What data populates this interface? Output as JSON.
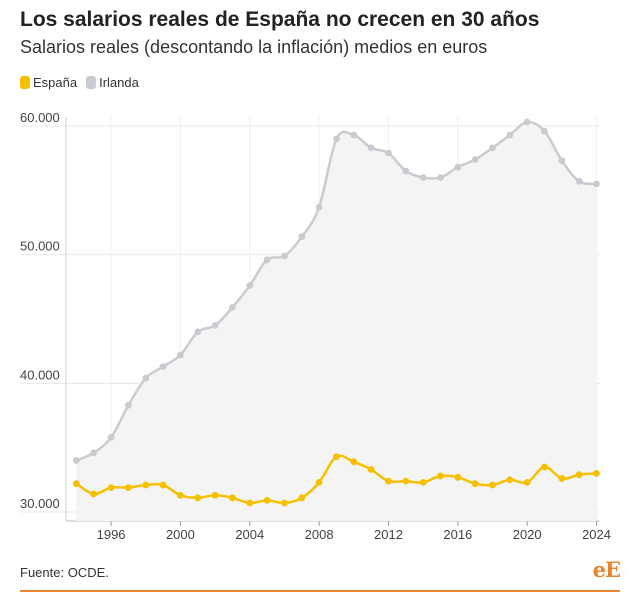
{
  "header": {
    "title": "Los salarios reales de España no crecen en 30 años",
    "subtitle": "Salarios reales (descontando la inflación) medios en euros"
  },
  "footer": {
    "source": "Fuente: OCDE.",
    "logo": "eE"
  },
  "colors": {
    "espana": "#f5c000",
    "irlanda": "#c8ccd0",
    "irlanda_fill": "#f4f4f4",
    "accent": "#e8842c",
    "grid": "#e8e8e8"
  },
  "chart_data": {
    "type": "line",
    "title": "Los salarios reales de España no crecen en 30 años",
    "subtitle": "Salarios reales (descontando la inflación) medios en euros",
    "xlabel": "",
    "ylabel": "",
    "x": [
      1994,
      1995,
      1996,
      1997,
      1998,
      1999,
      2000,
      2001,
      2002,
      2003,
      2004,
      2005,
      2006,
      2007,
      2008,
      2009,
      2010,
      2011,
      2012,
      2013,
      2014,
      2015,
      2016,
      2017,
      2018,
      2019,
      2020,
      2021,
      2022,
      2023,
      2024
    ],
    "xlim": [
      1993.4,
      2024.2
    ],
    "xticks": [
      1996,
      2000,
      2004,
      2008,
      2012,
      2016,
      2020,
      2024
    ],
    "xtick_labels": [
      "1996",
      "2000",
      "2004",
      "2008",
      "2012",
      "2016",
      "2020",
      "2024"
    ],
    "ylim": [
      30000,
      60200
    ],
    "yticks": [
      30000,
      40000,
      50000,
      60000
    ],
    "ytick_labels": [
      "30.000",
      "40.000",
      "50.000",
      "60.000"
    ],
    "grid": true,
    "legend_position": "top-left",
    "series": [
      {
        "name": "España",
        "color": "#f5c000",
        "values": [
          32200,
          31400,
          31900,
          31900,
          32100,
          32100,
          31300,
          31100,
          31300,
          31100,
          30700,
          30900,
          30700,
          31100,
          32300,
          34300,
          33900,
          33300,
          32400,
          32400,
          32300,
          32800,
          32700,
          32200,
          32100,
          32500,
          32300,
          33500,
          32600,
          32900,
          33000
        ]
      },
      {
        "name": "Irlanda",
        "color": "#c8ccd0",
        "fill": "#f4f4f4",
        "values": [
          34000,
          34600,
          35800,
          38300,
          40400,
          41300,
          42200,
          44000,
          44500,
          45900,
          47600,
          49600,
          49900,
          51400,
          53700,
          59000,
          59300,
          58300,
          57900,
          56500,
          56000,
          56000,
          56800,
          57400,
          58300,
          59300,
          60300,
          59600,
          57300,
          55700,
          55500
        ]
      }
    ]
  }
}
